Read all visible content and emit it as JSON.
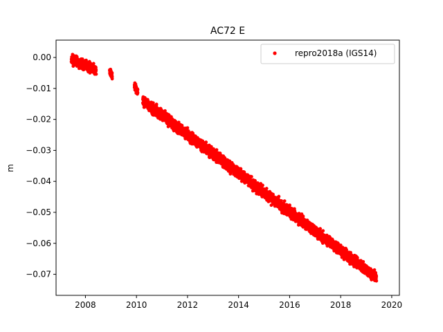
{
  "chart_data": {
    "type": "scatter",
    "title": "AC72 E",
    "xlabel": "",
    "ylabel": "m",
    "xlim": [
      2006.85,
      2020.3
    ],
    "ylim": [
      -0.0768,
      0.0056
    ],
    "xticks": [
      2008,
      2010,
      2012,
      2014,
      2016,
      2018,
      2020
    ],
    "yticks": [
      0.0,
      -0.01,
      -0.02,
      -0.03,
      -0.04,
      -0.05,
      -0.06,
      -0.07
    ],
    "ytick_labels": [
      "0.00",
      "−0.01",
      "−0.02",
      "−0.03",
      "−0.04",
      "−0.05",
      "−0.06",
      "−0.07"
    ],
    "grid": false,
    "legend_position": "top-right",
    "series": [
      {
        "name": "repro2018a (IGS14)",
        "color": "#ff0000",
        "marker": "circle",
        "segments": [
          {
            "x_start": 2007.45,
            "x_end": 2008.42,
            "y_start": -0.0005,
            "y_end": -0.004,
            "spread": 0.0045
          },
          {
            "x_start": 2008.95,
            "x_end": 2009.05,
            "y_start": -0.0045,
            "y_end": -0.006,
            "spread": 0.003
          },
          {
            "x_start": 2009.92,
            "x_end": 2010.05,
            "y_start": -0.009,
            "y_end": -0.011,
            "spread": 0.0035
          },
          {
            "x_start": 2010.25,
            "x_end": 2019.4,
            "y_start": -0.014,
            "y_end": -0.071,
            "spread": 0.005
          }
        ]
      }
    ]
  }
}
